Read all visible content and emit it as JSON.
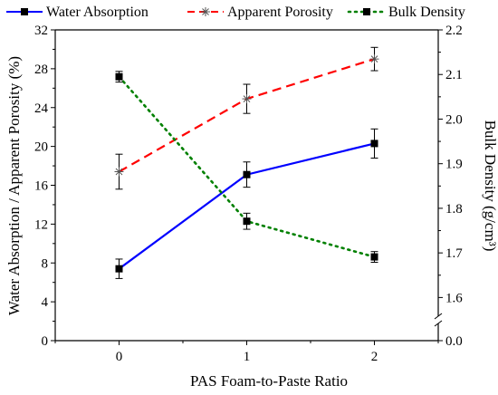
{
  "chart_data": {
    "type": "line",
    "xlabel": "PAS Foam-to-Paste Ratio",
    "ylabel_left": "Water Absorption / Apparent Porosity (%)",
    "ylabel_right": "Bulk Density (g/cm³)",
    "x": [
      0,
      1,
      2
    ],
    "xlim": [
      -0.5,
      2.5
    ],
    "xticks": [
      "0",
      "1",
      "2"
    ],
    "ylim_left": [
      0,
      32
    ],
    "yticks_left": [
      "0",
      "4",
      "8",
      "12",
      "16",
      "20",
      "24",
      "28",
      "32"
    ],
    "ylim_right": [
      1.55,
      2.2
    ],
    "yticks_right": [
      "0.0",
      "1.6",
      "1.7",
      "1.8",
      "1.9",
      "2.0",
      "2.1",
      "2.2"
    ],
    "right_axis_break": true,
    "legend_position": "top",
    "series": [
      {
        "name": "Water Absorption",
        "axis": "left",
        "color": "#0000ff",
        "line_style": "solid",
        "marker": "square",
        "values": [
          7.4,
          17.1,
          20.3
        ],
        "errors": [
          1.0,
          1.3,
          1.5
        ]
      },
      {
        "name": "Apparent Porosity",
        "axis": "left",
        "color": "#ff0000",
        "line_style": "dashed",
        "marker": "asterisk",
        "values": [
          17.4,
          24.9,
          29.0
        ],
        "errors": [
          1.8,
          1.5,
          1.2
        ]
      },
      {
        "name": "Bulk Density",
        "axis": "right",
        "color": "#008000",
        "line_style": "dotted",
        "marker": "square",
        "values": [
          2.095,
          1.771,
          1.691
        ],
        "errors": [
          0.012,
          0.018,
          0.012
        ]
      }
    ]
  }
}
